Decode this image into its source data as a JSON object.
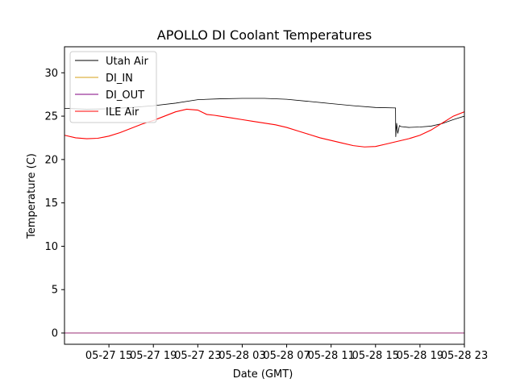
{
  "chart_data": {
    "type": "line",
    "title": "APOLLO DI Coolant Temperatures",
    "xlabel": "Date (GMT)",
    "ylabel": "Temperature (C)",
    "xlim": [
      11.0,
      47.0
    ],
    "ylim": [
      -1.3,
      33.0
    ],
    "x_units": "hours since 2018-05-27 00:00 GMT",
    "x_ticks": [
      {
        "value": 15,
        "label": "05-27 15"
      },
      {
        "value": 19,
        "label": "05-27 19"
      },
      {
        "value": 23,
        "label": "05-27 23"
      },
      {
        "value": 27,
        "label": "05-28 03"
      },
      {
        "value": 31,
        "label": "05-28 07"
      },
      {
        "value": 35,
        "label": "05-28 11"
      },
      {
        "value": 39,
        "label": "05-28 15"
      },
      {
        "value": 43,
        "label": "05-28 19"
      },
      {
        "value": 47,
        "label": "05-28 23"
      }
    ],
    "y_ticks": [
      {
        "value": 0,
        "label": "0"
      },
      {
        "value": 5,
        "label": "5"
      },
      {
        "value": 10,
        "label": "10"
      },
      {
        "value": 15,
        "label": "15"
      },
      {
        "value": 20,
        "label": "20"
      },
      {
        "value": 25,
        "label": "25"
      },
      {
        "value": 30,
        "label": "30"
      }
    ],
    "legend_position": "upper-left",
    "grid": false,
    "series": [
      {
        "name": "Utah Air",
        "color": "#000000",
        "points": [
          [
            11.0,
            25.9
          ],
          [
            13.0,
            25.8
          ],
          [
            15.0,
            25.85
          ],
          [
            17.0,
            26.0
          ],
          [
            19.0,
            26.2
          ],
          [
            21.0,
            26.5
          ],
          [
            23.0,
            26.9
          ],
          [
            25.0,
            27.0
          ],
          [
            27.0,
            27.05
          ],
          [
            29.0,
            27.05
          ],
          [
            31.0,
            26.95
          ],
          [
            33.0,
            26.7
          ],
          [
            35.0,
            26.45
          ],
          [
            37.0,
            26.2
          ],
          [
            39.0,
            26.0
          ],
          [
            40.8,
            25.95
          ],
          [
            40.82,
            22.6
          ],
          [
            40.9,
            24.2
          ],
          [
            41.0,
            23.0
          ],
          [
            41.15,
            23.9
          ],
          [
            41.3,
            23.8
          ],
          [
            42.0,
            23.7
          ],
          [
            43.0,
            23.75
          ],
          [
            44.0,
            23.85
          ],
          [
            45.0,
            24.15
          ],
          [
            46.0,
            24.6
          ],
          [
            47.0,
            25.0
          ]
        ]
      },
      {
        "name": "DI_IN",
        "color": "#d4a017",
        "points": [
          [
            11.0,
            0.0
          ],
          [
            47.0,
            0.0
          ]
        ]
      },
      {
        "name": "DI_OUT",
        "color": "#800080",
        "points": [
          [
            11.0,
            0.0
          ],
          [
            47.0,
            0.0
          ]
        ]
      },
      {
        "name": "ILE Air",
        "color": "#ff0000",
        "points": [
          [
            11.0,
            22.8
          ],
          [
            12.0,
            22.5
          ],
          [
            13.0,
            22.4
          ],
          [
            14.0,
            22.45
          ],
          [
            15.0,
            22.7
          ],
          [
            16.0,
            23.1
          ],
          [
            17.0,
            23.6
          ],
          [
            18.0,
            24.1
          ],
          [
            19.0,
            24.5
          ],
          [
            20.0,
            25.0
          ],
          [
            21.0,
            25.5
          ],
          [
            22.0,
            25.8
          ],
          [
            23.0,
            25.7
          ],
          [
            23.8,
            25.2
          ],
          [
            24.5,
            25.1
          ],
          [
            25.0,
            25.0
          ],
          [
            26.0,
            24.8
          ],
          [
            27.0,
            24.6
          ],
          [
            28.0,
            24.4
          ],
          [
            29.0,
            24.2
          ],
          [
            30.0,
            24.0
          ],
          [
            31.0,
            23.7
          ],
          [
            32.0,
            23.3
          ],
          [
            33.0,
            22.9
          ],
          [
            34.0,
            22.5
          ],
          [
            35.0,
            22.2
          ],
          [
            36.0,
            21.9
          ],
          [
            37.0,
            21.6
          ],
          [
            38.0,
            21.45
          ],
          [
            39.0,
            21.5
          ],
          [
            40.0,
            21.8
          ],
          [
            41.0,
            22.1
          ],
          [
            42.0,
            22.4
          ],
          [
            43.0,
            22.8
          ],
          [
            44.0,
            23.4
          ],
          [
            45.0,
            24.2
          ],
          [
            46.0,
            25.0
          ],
          [
            47.0,
            25.5
          ]
        ]
      }
    ]
  }
}
